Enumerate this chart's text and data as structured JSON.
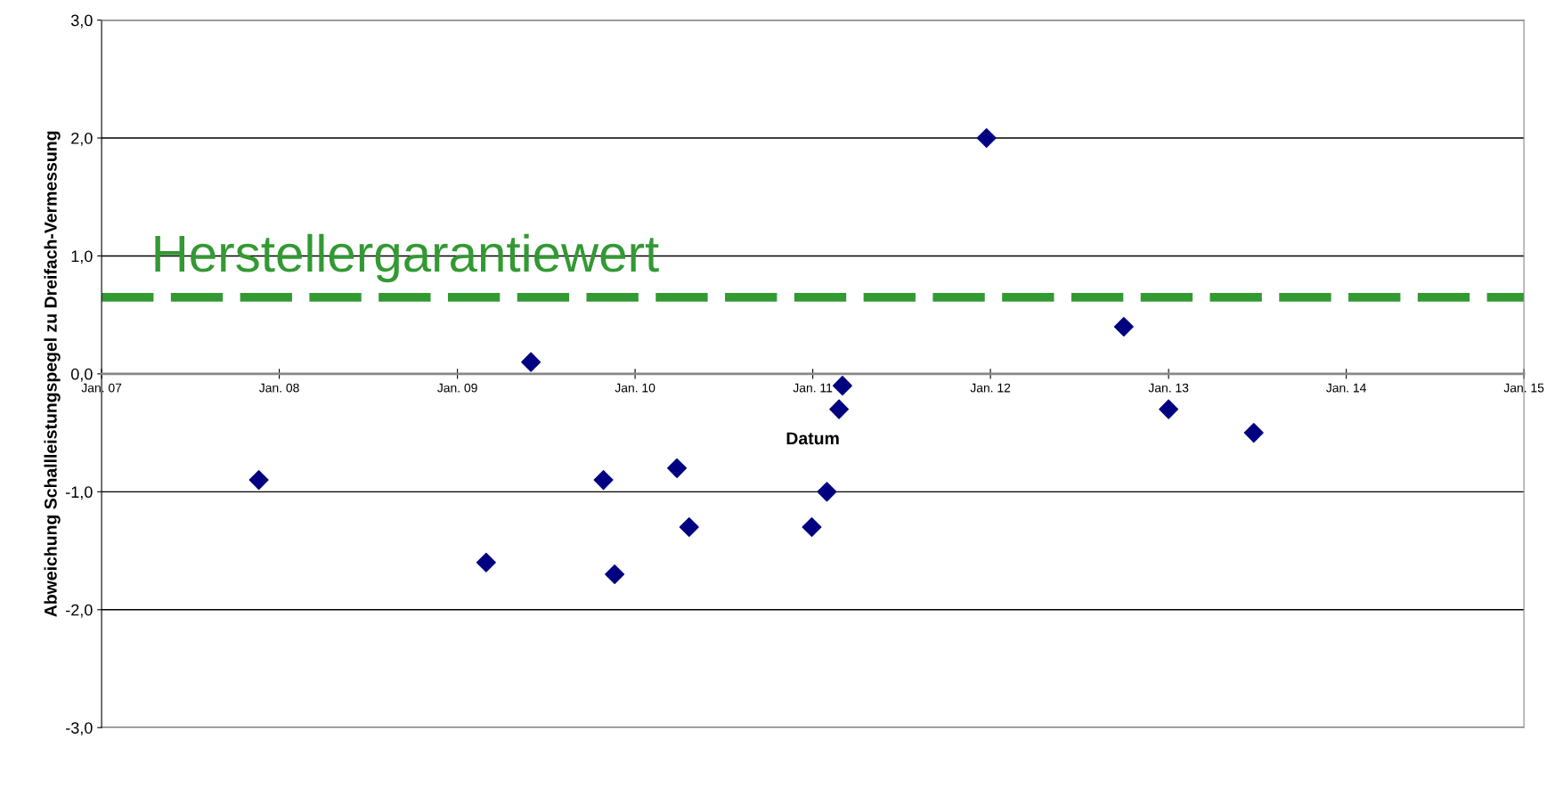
{
  "chart_data": {
    "type": "scatter",
    "xlabel": "Datum",
    "ylabel": "Abweichung Schallleistungspegel zu Dreifach-Vermessung",
    "x": [
      "2007-11-20",
      "2009-03-01",
      "2009-06-01",
      "2009-10-28",
      "2009-11-20",
      "2010-03-28",
      "2010-04-22",
      "2010-12-30",
      "2011-01-30",
      "2011-02-24",
      "2011-03-03",
      "2011-12-24",
      "2012-10-01",
      "2013-01-01",
      "2013-06-25"
    ],
    "series": [
      {
        "color": "#000080",
        "values": [
          -0.9,
          -1.6,
          0.1,
          -0.9,
          -1.7,
          -0.8,
          -1.3,
          -1.3,
          -1.0,
          -0.3,
          -0.1,
          2.0,
          0.4,
          -0.3,
          -0.5
        ]
      }
    ],
    "marker": "diamond",
    "xlim": [
      "2007-01-01",
      "2015-01-01"
    ],
    "xticks": [
      {
        "value": "2007-01-01",
        "label": "Jan. 07"
      },
      {
        "value": "2008-01-01",
        "label": "Jan. 08"
      },
      {
        "value": "2009-01-01",
        "label": "Jan. 09"
      },
      {
        "value": "2010-01-01",
        "label": "Jan. 10"
      },
      {
        "value": "2011-01-01",
        "label": "Jan. 11"
      },
      {
        "value": "2012-01-01",
        "label": "Jan. 12"
      },
      {
        "value": "2013-01-01",
        "label": "Jan. 13"
      },
      {
        "value": "2014-01-01",
        "label": "Jan. 14"
      },
      {
        "value": "2015-01-01",
        "label": "Jan. 15"
      }
    ],
    "ylim": [
      -3,
      3
    ],
    "yticks": [
      {
        "value": -3,
        "label": "-3,0"
      },
      {
        "value": -2,
        "label": "-2,0"
      },
      {
        "value": -1,
        "label": "-1,0"
      },
      {
        "value": 0,
        "label": "0,0"
      },
      {
        "value": 1,
        "label": "1,0"
      },
      {
        "value": 2,
        "label": "2,0"
      },
      {
        "value": 3,
        "label": "3,0"
      }
    ],
    "grid": "y",
    "ref_lines": [
      {
        "axis": "y",
        "value": 0.65,
        "label": "Herstellergarantiewert",
        "color": "#339933",
        "line_style": "dashed"
      }
    ]
  }
}
